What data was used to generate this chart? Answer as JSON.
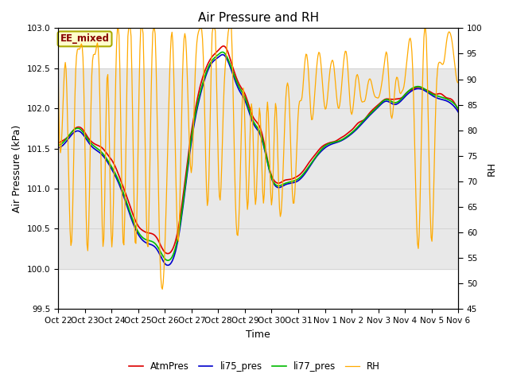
{
  "title": "Air Pressure and RH",
  "xlabel": "Time",
  "ylabel_left": "Air Pressure (kPa)",
  "ylabel_right": "RH",
  "ylim_left": [
    99.5,
    103.0
  ],
  "ylim_right": [
    45,
    100
  ],
  "yticks_left": [
    99.5,
    100.0,
    100.5,
    101.0,
    101.5,
    102.0,
    102.5,
    103.0
  ],
  "yticks_right": [
    45,
    50,
    55,
    60,
    65,
    70,
    75,
    80,
    85,
    90,
    95,
    100
  ],
  "xtick_labels": [
    "Oct 22",
    "Oct 23",
    "Oct 24",
    "Oct 25",
    "Oct 26",
    "Oct 27",
    "Oct 28",
    "Oct 29",
    "Oct 30",
    "Oct 31",
    "Nov 1",
    "Nov 2",
    "Nov 3",
    "Nov 4",
    "Nov 5",
    "Nov 6"
  ],
  "legend_label": "EE_mixed",
  "legend_box_facecolor": "#ffffcc",
  "legend_box_edgecolor": "#aaaa00",
  "legend_text_color": "#880000",
  "line_colors": {
    "AtmPres": "#dd0000",
    "li75_pres": "#0000cc",
    "li77_pres": "#00bb00",
    "RH": "#ffaa00"
  },
  "shaded_band": [
    100.0,
    102.5
  ],
  "shaded_color": "#e8e8e8",
  "background_color": "#ffffff",
  "grid_color": "#cccccc",
  "title_fontsize": 11,
  "axis_label_fontsize": 9,
  "tick_fontsize": 7.5
}
